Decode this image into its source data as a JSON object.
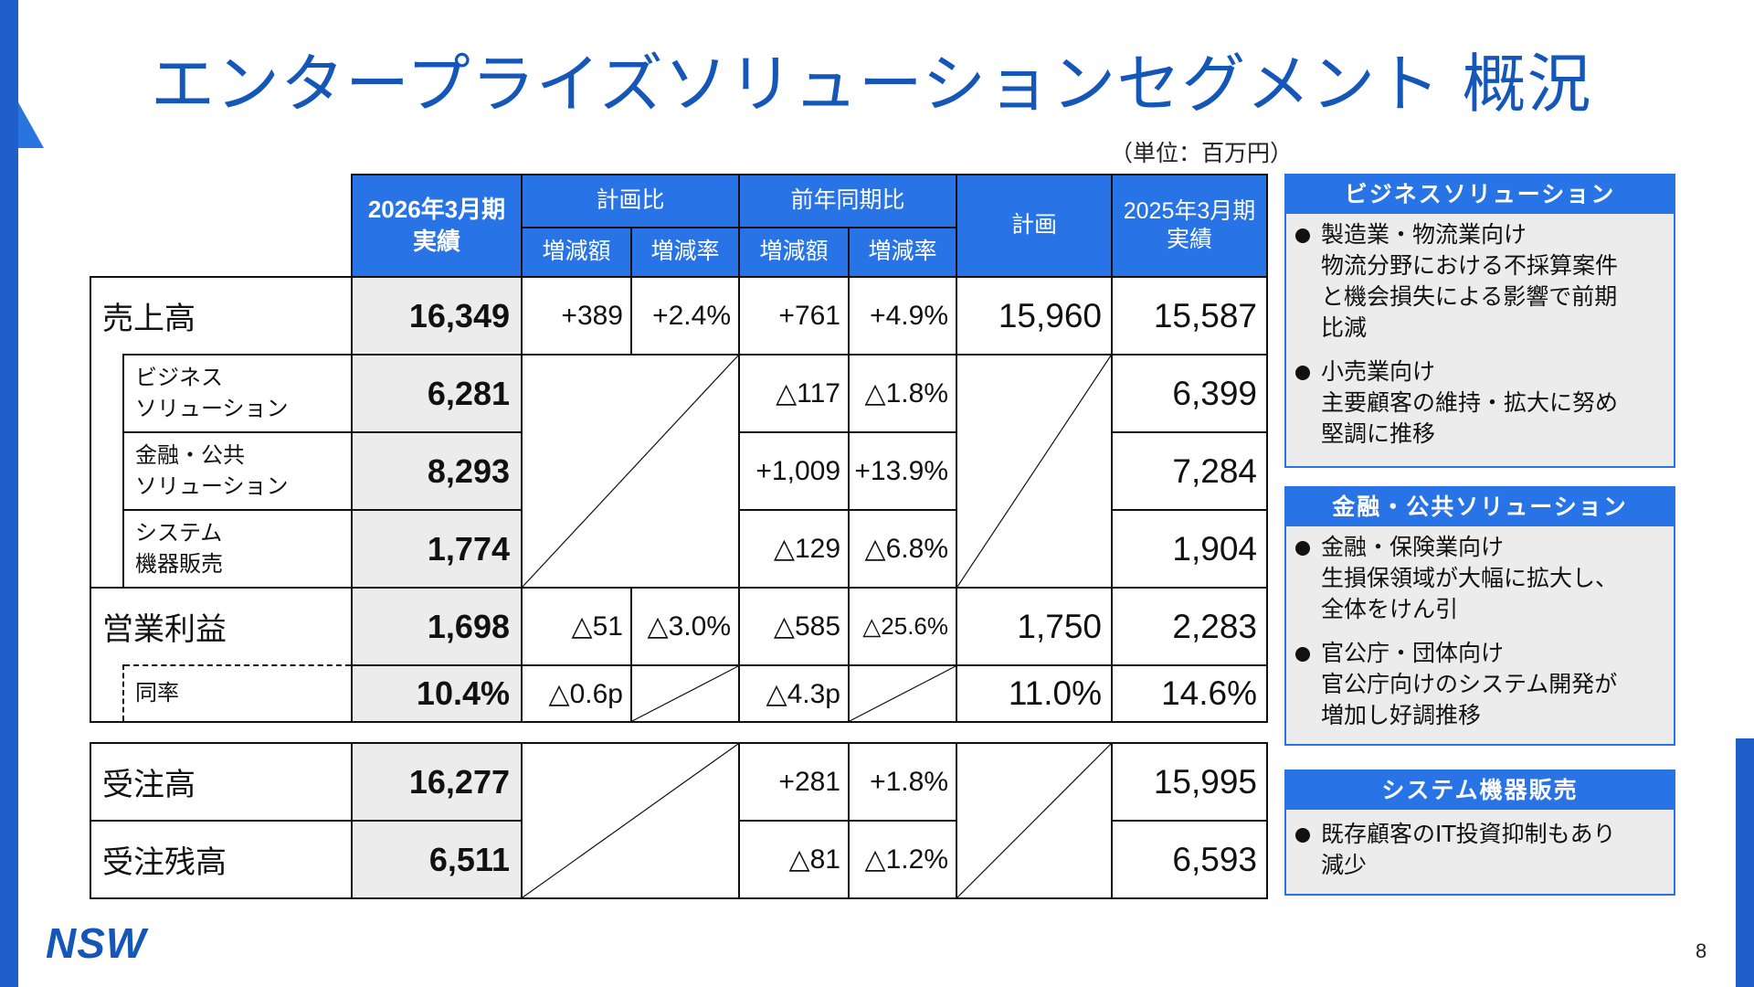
{
  "title": "エンタープライズソリューションセグメント 概況",
  "unit": "（単位：百万円）",
  "table": {
    "header": {
      "actual_line1": "2026年3月期",
      "actual_line2": "実績",
      "plan_compare": "計画比",
      "yoy_compare": "前年同期比",
      "plan": "計画",
      "prev_line1": "2025年3月期",
      "prev_line2": "実績",
      "diff_amount": "増減額",
      "diff_rate": "増減率"
    },
    "rows": {
      "sales": {
        "label": "売上高",
        "actual": "16,349",
        "plan_diff": "+389",
        "plan_rate": "+2.4%",
        "yoy_diff": "+761",
        "yoy_rate": "+4.9%",
        "plan": "15,960",
        "prev": "15,587"
      },
      "business": {
        "label1": "ビジネス",
        "label2": "ソリューション",
        "actual": "6,281",
        "yoy_diff": "△117",
        "yoy_rate": "△1.8%",
        "prev": "6,399"
      },
      "finance": {
        "label1": "金融・公共",
        "label2": "ソリューション",
        "actual": "8,293",
        "yoy_diff": "+1,009",
        "yoy_rate": "+13.9%",
        "prev": "7,284"
      },
      "system": {
        "label1": "システム",
        "label2": "機器販売",
        "actual": "1,774",
        "yoy_diff": "△129",
        "yoy_rate": "△6.8%",
        "prev": "1,904"
      },
      "op_profit": {
        "label": "営業利益",
        "actual": "1,698",
        "plan_diff": "△51",
        "plan_rate": "△3.0%",
        "yoy_diff": "△585",
        "yoy_rate": "△25.6%",
        "plan": "1,750",
        "prev": "2,283"
      },
      "op_rate": {
        "label": "同率",
        "actual": "10.4%",
        "plan_diff": "△0.6p",
        "yoy_diff": "△4.3p",
        "plan": "11.0%",
        "prev": "14.6%"
      },
      "orders": {
        "label": "受注高",
        "actual": "16,277",
        "yoy_diff": "+281",
        "yoy_rate": "+1.8%",
        "prev": "15,995"
      },
      "backlog": {
        "label": "受注残高",
        "actual": "6,511",
        "yoy_diff": "△81",
        "yoy_rate": "△1.2%",
        "prev": "6,593"
      }
    }
  },
  "boxes": [
    {
      "heading": "ビジネスソリューション",
      "items": [
        {
          "title": "製造業・物流業向け",
          "lines": [
            "物流分野における不採算案件",
            "と機会損失による影響で前期",
            "比減"
          ]
        },
        {
          "title": "小売業向け",
          "lines": [
            "主要顧客の維持・拡大に努め",
            "堅調に推移"
          ]
        }
      ]
    },
    {
      "heading": "金融・公共ソリューション",
      "items": [
        {
          "title": "金融・保険業向け",
          "lines": [
            "生損保領域が大幅に拡大し、",
            "全体をけん引"
          ]
        },
        {
          "title": "官公庁・団体向け",
          "lines": [
            "官公庁向けのシステム開発が",
            "増加し好調推移"
          ]
        }
      ]
    },
    {
      "heading": "システム機器販売",
      "items": [
        {
          "title": "既存顧客のIT投資抑制もあり",
          "lines": [
            "減少"
          ]
        }
      ]
    }
  ],
  "logo": "NSW",
  "page_number": "8",
  "colors": {
    "brand_blue": "#1557b8",
    "header_blue": "#2874e6",
    "actual_gray": "#ececec"
  }
}
